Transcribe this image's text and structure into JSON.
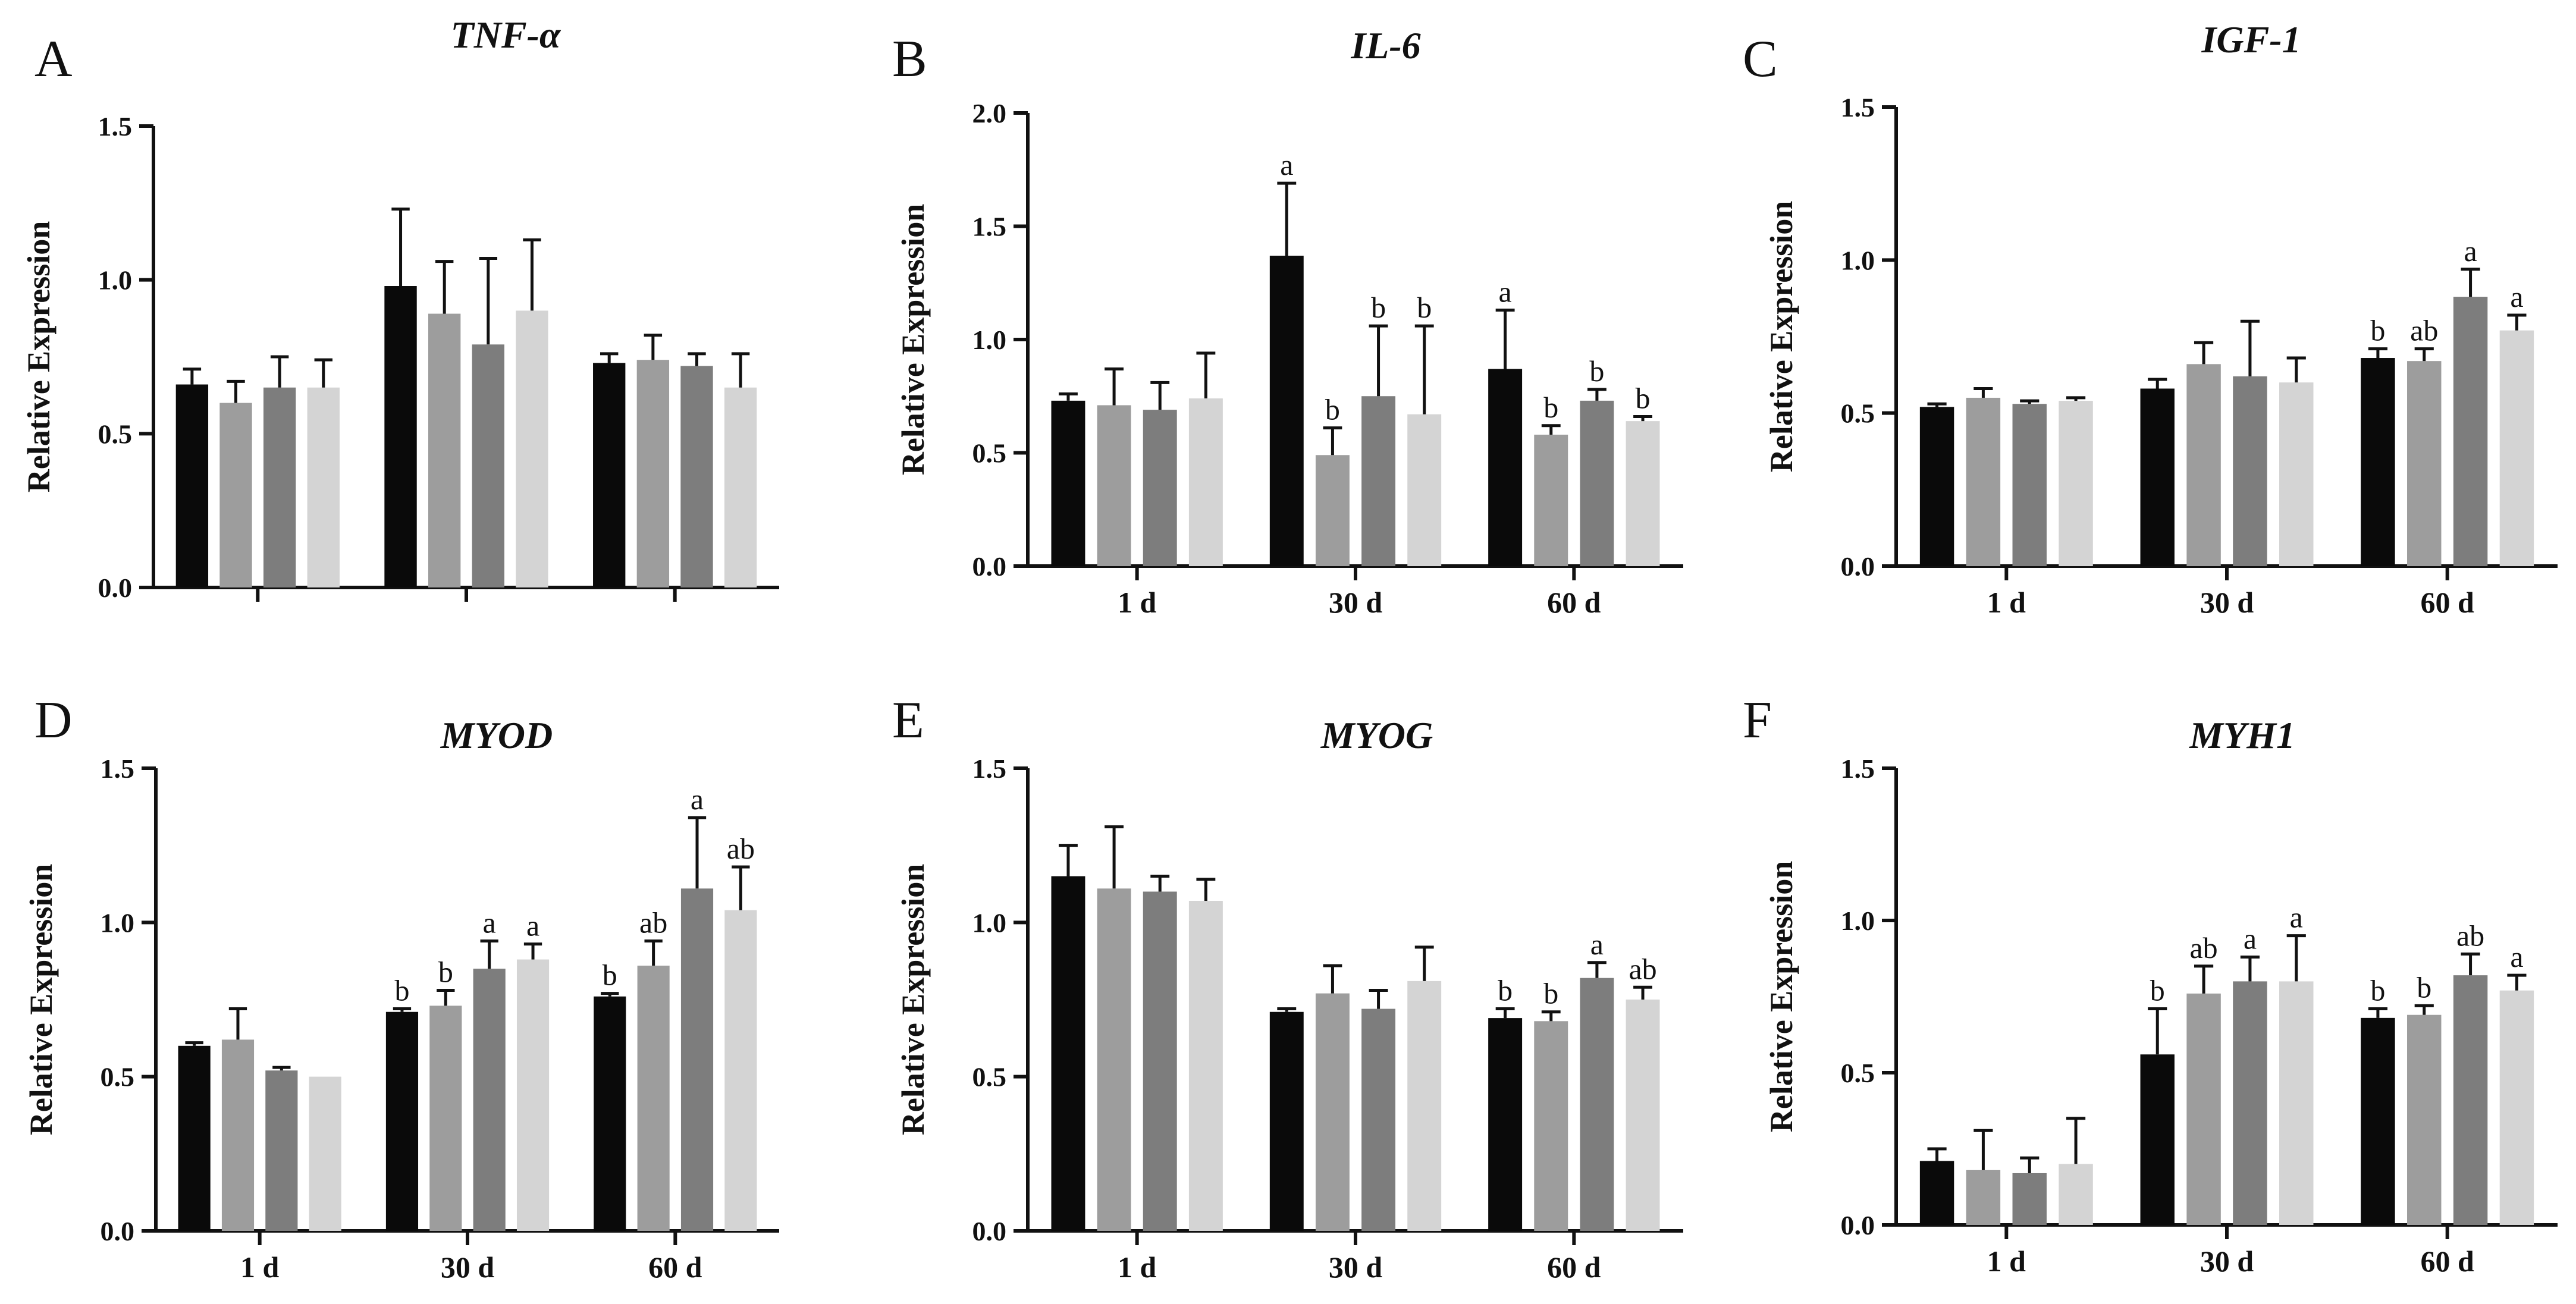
{
  "colors": {
    "series": [
      "#0a0a0a",
      "#9d9d9d",
      "#7d7d7d",
      "#d4d4d4"
    ],
    "axis": "#111111"
  },
  "chart_data": [
    {
      "type": "bar",
      "panel": "A",
      "title": "TNF-α",
      "ylabel": "Relative Expression",
      "ylim": [
        0,
        1.5
      ],
      "yticks": [
        "0.0",
        "0.5",
        "1.0",
        "1.5"
      ],
      "categories": [
        "",
        "",
        ""
      ],
      "series": [
        {
          "values": [
            0.66,
            0.98,
            0.73
          ],
          "errors": [
            0.05,
            0.25,
            0.03
          ],
          "labels": [
            "",
            "",
            ""
          ]
        },
        {
          "values": [
            0.6,
            0.89,
            0.74
          ],
          "errors": [
            0.07,
            0.17,
            0.08
          ],
          "labels": [
            "",
            "",
            ""
          ]
        },
        {
          "values": [
            0.65,
            0.79,
            0.72
          ],
          "errors": [
            0.1,
            0.28,
            0.04
          ],
          "labels": [
            "",
            "",
            ""
          ]
        },
        {
          "values": [
            0.65,
            0.9,
            0.65
          ],
          "errors": [
            0.09,
            0.23,
            0.11
          ],
          "labels": [
            "",
            "",
            ""
          ]
        }
      ]
    },
    {
      "type": "bar",
      "panel": "B",
      "title": "IL-6",
      "ylabel": "Relative Expression",
      "ylim": [
        0,
        2.0
      ],
      "yticks": [
        "0.0",
        "0.5",
        "1.0",
        "1.5",
        "2.0"
      ],
      "categories": [
        "1 d",
        "30 d",
        "60 d"
      ],
      "series": [
        {
          "values": [
            0.73,
            1.37,
            0.87
          ],
          "errors": [
            0.03,
            0.32,
            0.26
          ],
          "labels": [
            "",
            "a",
            "a"
          ]
        },
        {
          "values": [
            0.71,
            0.49,
            0.58
          ],
          "errors": [
            0.16,
            0.12,
            0.04
          ],
          "labels": [
            "",
            "b",
            "b"
          ]
        },
        {
          "values": [
            0.69,
            0.75,
            0.73
          ],
          "errors": [
            0.12,
            0.31,
            0.05
          ],
          "labels": [
            "",
            "b",
            "b"
          ]
        },
        {
          "values": [
            0.74,
            0.67,
            0.64
          ],
          "errors": [
            0.2,
            0.39,
            0.02
          ],
          "labels": [
            "",
            "b",
            "b"
          ]
        }
      ]
    },
    {
      "type": "bar",
      "panel": "C",
      "title": "IGF-1",
      "ylabel": "Relative Expression",
      "ylim": [
        0,
        1.5
      ],
      "yticks": [
        "0.0",
        "0.5",
        "1.0",
        "1.5"
      ],
      "categories": [
        "1 d",
        "30 d",
        "60 d"
      ],
      "series": [
        {
          "values": [
            0.52,
            0.58,
            0.68
          ],
          "errors": [
            0.01,
            0.03,
            0.03
          ],
          "labels": [
            "",
            "",
            "b"
          ]
        },
        {
          "values": [
            0.55,
            0.66,
            0.67
          ],
          "errors": [
            0.03,
            0.07,
            0.04
          ],
          "labels": [
            "",
            "",
            "ab"
          ]
        },
        {
          "values": [
            0.53,
            0.62,
            0.88
          ],
          "errors": [
            0.01,
            0.18,
            0.09
          ],
          "labels": [
            "",
            "",
            "a"
          ]
        },
        {
          "values": [
            0.54,
            0.6,
            0.77
          ],
          "errors": [
            0.01,
            0.08,
            0.05
          ],
          "labels": [
            "",
            "",
            "a"
          ]
        }
      ]
    },
    {
      "type": "bar",
      "panel": "D",
      "title": "MYOD",
      "ylabel": "Relative Expression",
      "ylim": [
        0,
        1.5
      ],
      "yticks": [
        "0.0",
        "0.5",
        "1.0",
        "1.5"
      ],
      "categories": [
        "1 d",
        "30 d",
        "60 d"
      ],
      "series": [
        {
          "values": [
            0.6,
            0.71,
            0.76
          ],
          "errors": [
            0.01,
            0.01,
            0.01
          ],
          "labels": [
            "",
            "b",
            "b"
          ]
        },
        {
          "values": [
            0.62,
            0.73,
            0.86
          ],
          "errors": [
            0.1,
            0.05,
            0.08
          ],
          "labels": [
            "",
            "b",
            "ab"
          ]
        },
        {
          "values": [
            0.52,
            0.85,
            1.11
          ],
          "errors": [
            0.01,
            0.09,
            0.23
          ],
          "labels": [
            "",
            "a",
            "a"
          ]
        },
        {
          "values": [
            0.5,
            0.88,
            1.04
          ],
          "errors": [
            0.0,
            0.05,
            0.14
          ],
          "labels": [
            "",
            "a",
            "ab"
          ]
        }
      ]
    },
    {
      "type": "bar",
      "panel": "E",
      "title": "MYOG",
      "ylabel": "Relative Expression",
      "ylim": [
        0,
        1.5
      ],
      "yticks": [
        "0.0",
        "0.5",
        "1.0",
        "1.5"
      ],
      "categories": [
        "1 d",
        "30 d",
        "60 d"
      ],
      "series": [
        {
          "values": [
            1.15,
            0.71,
            0.69
          ],
          "errors": [
            0.1,
            0.01,
            0.03
          ],
          "labels": [
            "",
            "",
            "b"
          ]
        },
        {
          "values": [
            1.11,
            0.77,
            0.68
          ],
          "errors": [
            0.2,
            0.09,
            0.03
          ],
          "labels": [
            "",
            "",
            "b"
          ]
        },
        {
          "values": [
            1.1,
            0.72,
            0.82
          ],
          "errors": [
            0.05,
            0.06,
            0.05
          ],
          "labels": [
            "",
            "",
            "a"
          ]
        },
        {
          "values": [
            1.07,
            0.81,
            0.75
          ],
          "errors": [
            0.07,
            0.11,
            0.04
          ],
          "labels": [
            "",
            "",
            "ab"
          ]
        }
      ]
    },
    {
      "type": "bar",
      "panel": "F",
      "title": "MYH1",
      "ylabel": "Relative Expression",
      "ylim": [
        0,
        1.5
      ],
      "yticks": [
        "0.0",
        "0.5",
        "1.0",
        "1.5"
      ],
      "categories": [
        "1 d",
        "30 d",
        "60 d"
      ],
      "series": [
        {
          "values": [
            0.21,
            0.56,
            0.68
          ],
          "errors": [
            0.04,
            0.15,
            0.03
          ],
          "labels": [
            "",
            "b",
            "b"
          ]
        },
        {
          "values": [
            0.18,
            0.76,
            0.69
          ],
          "errors": [
            0.13,
            0.09,
            0.03
          ],
          "labels": [
            "",
            "ab",
            "b"
          ]
        },
        {
          "values": [
            0.17,
            0.8,
            0.82
          ],
          "errors": [
            0.05,
            0.08,
            0.07
          ],
          "labels": [
            "",
            "a",
            "ab"
          ]
        },
        {
          "values": [
            0.2,
            0.8,
            0.77
          ],
          "errors": [
            0.15,
            0.15,
            0.05
          ],
          "labels": [
            "",
            "a",
            "a"
          ]
        }
      ]
    }
  ]
}
